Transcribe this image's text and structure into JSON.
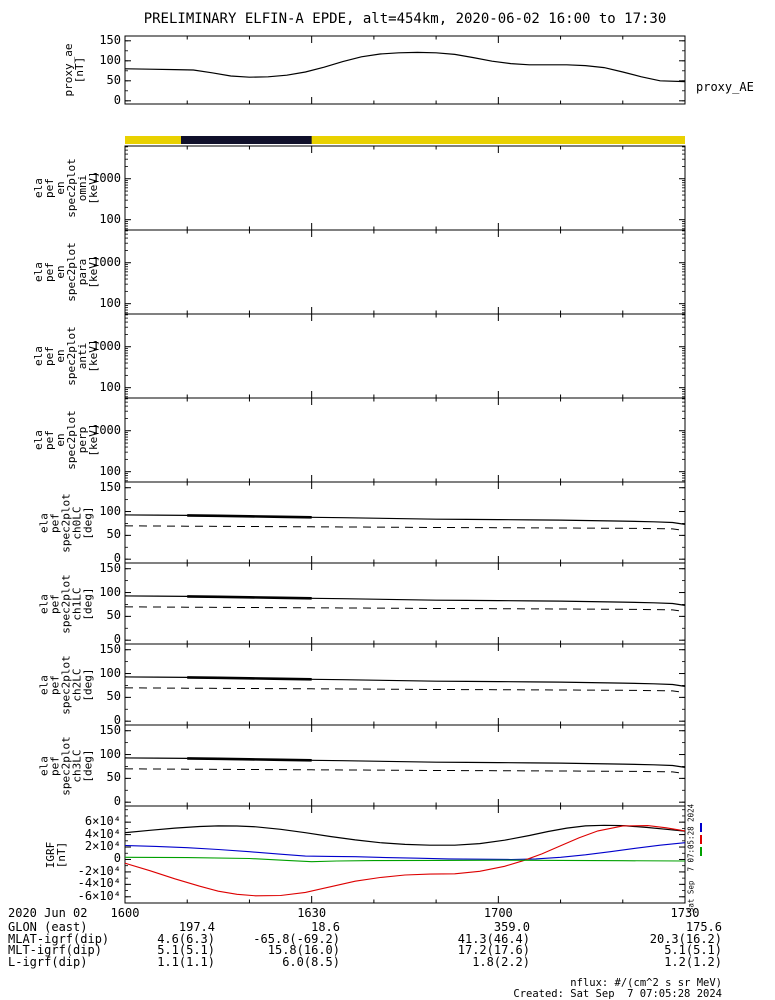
{
  "title": "PRELIMINARY ELFIN-A EPDE, alt=454km, 2020-06-02 16:00 to 17:30",
  "right_label": "proxy_AE",
  "side_note": "Sat Sep  7 07:05:28 2024",
  "footer": {
    "nflux": "nflux: #/(cm^2 s sr MeV)",
    "created": "Created: Sat Sep  7 07:05:28 2024"
  },
  "time_axis": {
    "start": "16:00",
    "end": "17:30",
    "ticks": [
      "1600",
      "1630",
      "1700",
      "1730"
    ]
  },
  "status_bar": {
    "segments": [
      {
        "color": "#e9d100",
        "t0": 0,
        "t1": 90
      },
      {
        "color": "#10102a",
        "t0": 9,
        "t1": 30
      }
    ]
  },
  "igrf_side_marks": [
    "#0000cc",
    "#dd0000",
    "#00a000"
  ],
  "ephemeris": {
    "date_label": "2020 Jun 02",
    "rows": [
      {
        "label": "GLON (east)",
        "values": [
          "197.4",
          "18.6",
          "359.0",
          "175.6"
        ]
      },
      {
        "label": "MLAT-igrf(dip)",
        "values": [
          "4.6(6.3)",
          "-65.8(-69.2)",
          "41.3(46.4)",
          "20.3(16.2)"
        ]
      },
      {
        "label": "MLT-igrf(dip)",
        "values": [
          "5.1(5.1)",
          "15.8(16.0)",
          "17.2(17.6)",
          "5.1(5.1)"
        ]
      },
      {
        "label": "L-igrf(dip)",
        "values": [
          "1.1(1.1)",
          "6.0(8.5)",
          "1.8(2.2)",
          "1.2(1.2)"
        ]
      }
    ]
  },
  "chart_data": [
    {
      "name": "proxy_AE",
      "type": "line",
      "ylabel": "proxy_ae\n[nT]",
      "yscale": "linear",
      "ylim": [
        -8,
        162
      ],
      "yminor": 25,
      "yticks": [
        {
          "v": 150,
          "label": "150"
        },
        {
          "v": 100,
          "label": "100"
        },
        {
          "v": 50,
          "label": "50"
        },
        {
          "v": 0,
          "label": "0"
        }
      ],
      "x_units": "minutes from 16:00",
      "series": [
        {
          "name": "proxy-ae-line",
          "color": "#000000",
          "width": 1.2,
          "x": [
            0,
            4,
            8,
            11,
            14,
            17,
            20,
            23,
            26,
            29,
            32,
            35,
            38,
            41,
            44,
            47,
            50,
            53,
            56,
            59,
            62,
            65,
            68,
            71,
            74,
            77,
            80,
            83,
            86,
            90
          ],
          "y": [
            80,
            79,
            78,
            77,
            70,
            62,
            59,
            60,
            64,
            72,
            84,
            98,
            110,
            117,
            120,
            121,
            120,
            116,
            108,
            99,
            93,
            90,
            90,
            90,
            88,
            83,
            72,
            60,
            50,
            48
          ]
        }
      ]
    },
    {
      "name": "ela_pef_en_spec2plot_omni",
      "type": "spectrogram",
      "ylabel": "ela\npef\nen\nspec2plot\nomni\n[keV]",
      "yscale": "log",
      "ylim": [
        56,
        6300
      ],
      "yticks": [
        {
          "v": 1000,
          "label": "1000"
        },
        {
          "v": 100,
          "label": "100"
        }
      ],
      "series": []
    },
    {
      "name": "ela_pef_en_spec2plot_para",
      "type": "spectrogram",
      "ylabel": "ela\npef\nen\nspec2plot\npara\n[keV]",
      "yscale": "log",
      "ylim": [
        56,
        6300
      ],
      "yticks": [
        {
          "v": 1000,
          "label": "1000"
        },
        {
          "v": 100,
          "label": "100"
        }
      ],
      "series": []
    },
    {
      "name": "ela_pef_en_spec2plot_anti",
      "type": "spectrogram",
      "ylabel": "ela\npef\nen\nspec2plot\nanti\n[keV]",
      "yscale": "log",
      "ylim": [
        56,
        6300
      ],
      "yticks": [
        {
          "v": 1000,
          "label": "1000"
        },
        {
          "v": 100,
          "label": "100"
        }
      ],
      "series": []
    },
    {
      "name": "ela_pef_en_spec2plot_perp",
      "type": "spectrogram",
      "ylabel": "ela\npef\nen\nspec2plot\nperp\n[keV]",
      "yscale": "log",
      "ylim": [
        56,
        6300
      ],
      "yticks": [
        {
          "v": 1000,
          "label": "1000"
        },
        {
          "v": 100,
          "label": "100"
        }
      ],
      "series": []
    },
    {
      "name": "ela_pef_spec2plot_ch0LC",
      "type": "line",
      "ylabel": "ela\npef\nspec2plot\nch0LC\n[deg]",
      "yscale": "linear",
      "ylim": [
        -8,
        162
      ],
      "yminor": 25,
      "yticks": [
        {
          "v": 150,
          "label": "150"
        },
        {
          "v": 100,
          "label": "100"
        },
        {
          "v": 50,
          "label": "50"
        },
        {
          "v": 0,
          "label": "0"
        }
      ],
      "series": [
        {
          "name": "ch0LC-pitch-line",
          "color": "#000000",
          "width": 1.2,
          "bold_range": [
            9,
            31
          ],
          "x": [
            0,
            5,
            10,
            15,
            20,
            25,
            30,
            35,
            40,
            45,
            50,
            55,
            60,
            65,
            70,
            75,
            80,
            85,
            88,
            90
          ],
          "y": [
            93,
            92.5,
            92,
            91,
            90,
            89,
            88,
            87,
            86,
            85,
            84,
            83.5,
            83,
            82.5,
            82,
            81,
            80,
            78.5,
            77,
            73
          ]
        },
        {
          "name": "ch0LC-losscone-dashed",
          "color": "#000000",
          "width": 1,
          "dash": "8,6",
          "x": [
            0,
            10,
            20,
            30,
            40,
            50,
            60,
            70,
            80,
            85,
            88,
            90
          ],
          "y": [
            70,
            69.3,
            68.6,
            68,
            67.3,
            66.6,
            66,
            65.4,
            64.8,
            64.3,
            63.5,
            60
          ]
        }
      ]
    },
    {
      "name": "ela_pef_spec2plot_ch1LC",
      "type": "line",
      "ylabel": "ela\npef\nspec2plot\nch1LC\n[deg]",
      "yscale": "linear",
      "ylim": [
        -8,
        162
      ],
      "yminor": 25,
      "yticks": [
        {
          "v": 150,
          "label": "150"
        },
        {
          "v": 100,
          "label": "100"
        },
        {
          "v": 50,
          "label": "50"
        },
        {
          "v": 0,
          "label": "0"
        }
      ],
      "series": [
        {
          "name": "ch1LC-pitch-line",
          "color": "#000000",
          "width": 1.2,
          "bold_range": [
            9,
            31
          ],
          "x": [
            0,
            5,
            10,
            15,
            20,
            25,
            30,
            35,
            40,
            45,
            50,
            55,
            60,
            65,
            70,
            75,
            80,
            85,
            88,
            90
          ],
          "y": [
            93,
            92.5,
            92,
            91,
            90,
            89,
            88,
            87,
            86,
            85,
            84,
            83.5,
            83,
            82.5,
            82,
            81,
            80,
            78.5,
            77,
            73
          ]
        },
        {
          "name": "ch1LC-losscone-dashed",
          "color": "#000000",
          "width": 1,
          "dash": "8,6",
          "x": [
            0,
            10,
            20,
            30,
            40,
            50,
            60,
            70,
            80,
            85,
            88,
            90
          ],
          "y": [
            70,
            69.3,
            68.6,
            68,
            67.3,
            66.6,
            66,
            65.4,
            64.8,
            64.3,
            63.5,
            60
          ]
        }
      ]
    },
    {
      "name": "ela_pef_spec2plot_ch2LC",
      "type": "line",
      "ylabel": "ela\npef\nspec2plot\nch2LC\n[deg]",
      "yscale": "linear",
      "ylim": [
        -8,
        162
      ],
      "yminor": 25,
      "yticks": [
        {
          "v": 150,
          "label": "150"
        },
        {
          "v": 100,
          "label": "100"
        },
        {
          "v": 50,
          "label": "50"
        },
        {
          "v": 0,
          "label": "0"
        }
      ],
      "series": [
        {
          "name": "ch2LC-pitch-line",
          "color": "#000000",
          "width": 1.2,
          "bold_range": [
            9,
            31
          ],
          "x": [
            0,
            5,
            10,
            15,
            20,
            25,
            30,
            35,
            40,
            45,
            50,
            55,
            60,
            65,
            70,
            75,
            80,
            85,
            88,
            90
          ],
          "y": [
            93,
            92.5,
            92,
            91,
            90,
            89,
            88,
            87,
            86,
            85,
            84,
            83.5,
            83,
            82.5,
            82,
            81,
            80,
            78.5,
            77,
            73
          ]
        },
        {
          "name": "ch2LC-losscone-dashed",
          "color": "#000000",
          "width": 1,
          "dash": "8,6",
          "x": [
            0,
            10,
            20,
            30,
            40,
            50,
            60,
            70,
            80,
            85,
            88,
            90
          ],
          "y": [
            70,
            69.3,
            68.6,
            68,
            67.3,
            66.6,
            66,
            65.4,
            64.8,
            64.3,
            63.5,
            60
          ]
        }
      ]
    },
    {
      "name": "ela_pef_spec2plot_ch3LC",
      "type": "line",
      "ylabel": "ela\npef\nspec2plot\nch3LC\n[deg]",
      "yscale": "linear",
      "ylim": [
        -8,
        162
      ],
      "yminor": 25,
      "yticks": [
        {
          "v": 150,
          "label": "150"
        },
        {
          "v": 100,
          "label": "100"
        },
        {
          "v": 50,
          "label": "50"
        },
        {
          "v": 0,
          "label": "0"
        }
      ],
      "series": [
        {
          "name": "ch3LC-pitch-line",
          "color": "#000000",
          "width": 1.2,
          "bold_range": [
            9,
            31
          ],
          "x": [
            0,
            5,
            10,
            15,
            20,
            25,
            30,
            35,
            40,
            45,
            50,
            55,
            60,
            65,
            70,
            75,
            80,
            85,
            88,
            90
          ],
          "y": [
            93,
            92.5,
            92,
            91,
            90,
            89,
            88,
            87,
            86,
            85,
            84,
            83.5,
            83,
            82.5,
            82,
            81,
            80,
            78.5,
            77,
            73
          ]
        },
        {
          "name": "ch3LC-losscone-dashed",
          "color": "#000000",
          "width": 1,
          "dash": "8,6",
          "x": [
            0,
            10,
            20,
            30,
            40,
            50,
            60,
            70,
            80,
            85,
            88,
            90
          ],
          "y": [
            70,
            69.3,
            68.6,
            68,
            67.3,
            66.6,
            66,
            65.4,
            64.8,
            64.3,
            63.5,
            60
          ]
        }
      ]
    },
    {
      "name": "IGRF",
      "type": "line",
      "ylabel": "IGRF\n[nT]",
      "yscale": "linear",
      "ylim": [
        -70000,
        86000
      ],
      "yminor": 10000,
      "yticks": [
        {
          "v": 60000,
          "label": "6×10⁴"
        },
        {
          "v": 40000,
          "label": "4×10⁴"
        },
        {
          "v": 20000,
          "label": "2×10⁴"
        },
        {
          "v": 0,
          "label": "0"
        },
        {
          "v": -20000,
          "label": "-2×10⁴"
        },
        {
          "v": -40000,
          "label": "-4×10⁴"
        },
        {
          "v": -60000,
          "label": "-6×10⁴"
        }
      ],
      "series": [
        {
          "name": "igrf-btotal-black",
          "color": "#000000",
          "width": 1.2,
          "x": [
            0,
            4,
            8,
            12,
            15,
            18,
            21,
            25,
            29,
            33,
            37,
            41,
            45,
            49,
            53,
            57,
            61,
            65,
            68,
            71,
            74,
            77,
            80,
            84,
            87,
            90
          ],
          "y": [
            43000,
            47000,
            50500,
            53000,
            54000,
            53800,
            52500,
            48500,
            43000,
            37000,
            31500,
            27000,
            24200,
            23000,
            23000,
            25500,
            31000,
            38500,
            45000,
            50500,
            54000,
            55000,
            54500,
            51500,
            48500,
            45500
          ]
        },
        {
          "name": "igrf-component-blue",
          "color": "#0000cc",
          "width": 1.1,
          "x": [
            0,
            5,
            10,
            15,
            20,
            25,
            29,
            33,
            37,
            42,
            47,
            52,
            57,
            62,
            66,
            70,
            74,
            78,
            82,
            86,
            90
          ],
          "y": [
            22500,
            21000,
            19000,
            16000,
            12500,
            8500,
            5500,
            5000,
            4500,
            3000,
            2000,
            1000,
            500,
            0,
            1000,
            3500,
            7500,
            12500,
            18000,
            23000,
            27000
          ]
        },
        {
          "name": "igrf-component-red",
          "color": "#dd0000",
          "width": 1.1,
          "x": [
            0,
            4,
            8,
            12,
            15,
            18,
            21,
            25,
            29,
            33,
            37,
            41,
            45,
            49,
            53,
            57,
            61,
            64,
            67,
            70,
            73,
            76,
            80,
            84,
            87,
            90
          ],
          "y": [
            -6000,
            -18000,
            -31000,
            -43000,
            -51000,
            -56000,
            -58500,
            -58000,
            -53000,
            -44000,
            -35000,
            -29000,
            -25000,
            -23500,
            -23000,
            -19000,
            -11000,
            -2000,
            9000,
            22000,
            35000,
            46000,
            54000,
            54500,
            51000,
            46000
          ]
        },
        {
          "name": "igrf-component-green",
          "color": "#00a000",
          "width": 1.1,
          "x": [
            0,
            10,
            20,
            26,
            30,
            34,
            40,
            50,
            60,
            70,
            80,
            90
          ],
          "y": [
            3500,
            3000,
            1500,
            -1500,
            -3500,
            -2500,
            -1800,
            -1500,
            -1200,
            -1500,
            -2000,
            -2500
          ]
        }
      ]
    }
  ]
}
